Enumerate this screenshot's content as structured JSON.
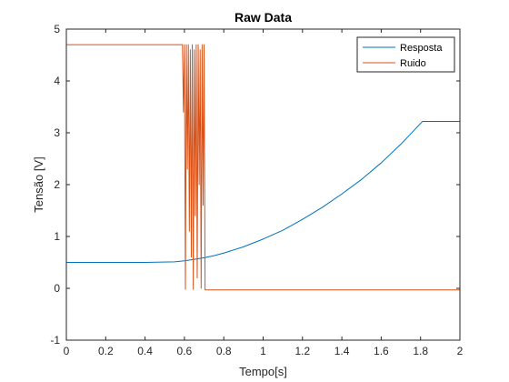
{
  "chart_data": {
    "type": "line",
    "title": "Raw Data",
    "xlabel": "Tempo[s]",
    "ylabel": "Tensão [V]",
    "xlim": [
      0,
      2
    ],
    "ylim": [
      -1,
      5
    ],
    "x_ticks": [
      "0",
      "0.2",
      "0.4",
      "0.6",
      "0.8",
      "1",
      "1.2",
      "1.4",
      "1.6",
      "1.8",
      "2"
    ],
    "y_ticks": [
      "-1",
      "0",
      "1",
      "2",
      "3",
      "4",
      "5"
    ],
    "grid": false,
    "legend_position": "top-right",
    "series": [
      {
        "name": "Resposta",
        "color": "#0072BD",
        "x": [
          0,
          0.2,
          0.4,
          0.55,
          0.6,
          0.65,
          0.7,
          0.75,
          0.8,
          0.9,
          1.0,
          1.1,
          1.2,
          1.3,
          1.4,
          1.5,
          1.6,
          1.7,
          1.81,
          2.0
        ],
        "y": [
          0.5,
          0.5,
          0.5,
          0.51,
          0.53,
          0.56,
          0.59,
          0.63,
          0.68,
          0.8,
          0.95,
          1.12,
          1.33,
          1.56,
          1.82,
          2.1,
          2.42,
          2.78,
          3.22,
          3.22
        ]
      },
      {
        "name": "Ruido",
        "color": "#D95319",
        "x": [
          0,
          0.55,
          0.59,
          0.595,
          0.6,
          0.605,
          0.61,
          0.615,
          0.62,
          0.625,
          0.63,
          0.635,
          0.64,
          0.645,
          0.65,
          0.655,
          0.66,
          0.665,
          0.67,
          0.675,
          0.68,
          0.685,
          0.69,
          0.695,
          0.7,
          0.705,
          2.0
        ],
        "y": [
          4.7,
          4.7,
          4.7,
          3.4,
          4.7,
          -0.02,
          4.7,
          2.3,
          4.7,
          1.1,
          4.6,
          0.6,
          4.7,
          -0.02,
          4.6,
          1.4,
          4.7,
          0.2,
          4.7,
          2.0,
          4.6,
          0.0,
          4.7,
          1.6,
          4.7,
          -0.03,
          -0.03
        ]
      }
    ]
  }
}
